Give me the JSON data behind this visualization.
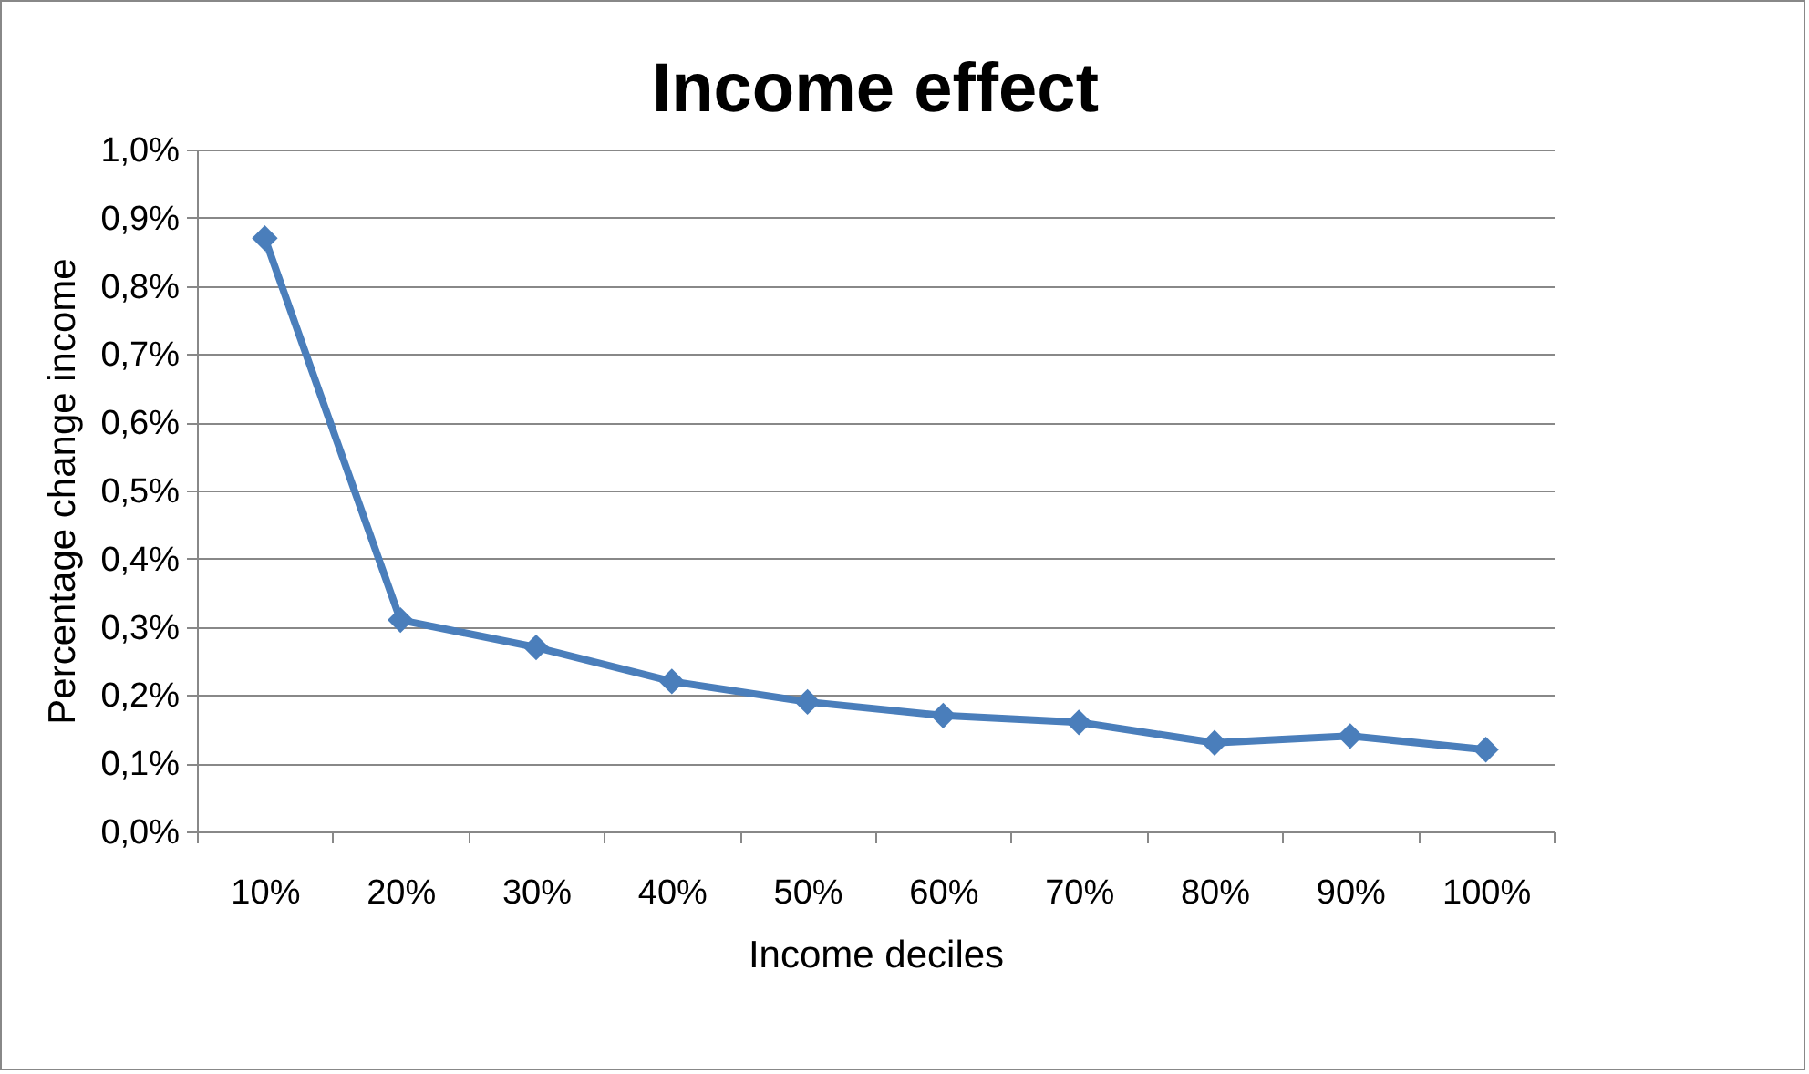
{
  "chart_data": {
    "type": "line",
    "title": "Income effect",
    "xlabel": "Income deciles",
    "ylabel": "Percentage change income",
    "categories": [
      "10%",
      "20%",
      "30%",
      "40%",
      "50%",
      "60%",
      "70%",
      "80%",
      "90%",
      "100%"
    ],
    "series": [
      {
        "color": "#4a7ebb",
        "values": [
          0.87,
          0.31,
          0.27,
          0.22,
          0.19,
          0.17,
          0.16,
          0.13,
          0.14,
          0.12
        ]
      }
    ],
    "ylim": [
      0,
      1
    ],
    "yticks": [
      {
        "value": 0,
        "label": "0,0%"
      },
      {
        "value": 0.1,
        "label": "0,1%"
      },
      {
        "value": 0.2,
        "label": "0,2%"
      },
      {
        "value": 0.3,
        "label": "0,3%"
      },
      {
        "value": 0.4,
        "label": "0,4%"
      },
      {
        "value": 0.5,
        "label": "0,5%"
      },
      {
        "value": 0.6,
        "label": "0,6%"
      },
      {
        "value": 0.7,
        "label": "0,7%"
      },
      {
        "value": 0.8,
        "label": "0,8%"
      },
      {
        "value": 0.9,
        "label": "0,9%"
      },
      {
        "value": 1,
        "label": "1,0%"
      }
    ],
    "grid": "y",
    "marker": "diamond",
    "line_style": "solid"
  }
}
